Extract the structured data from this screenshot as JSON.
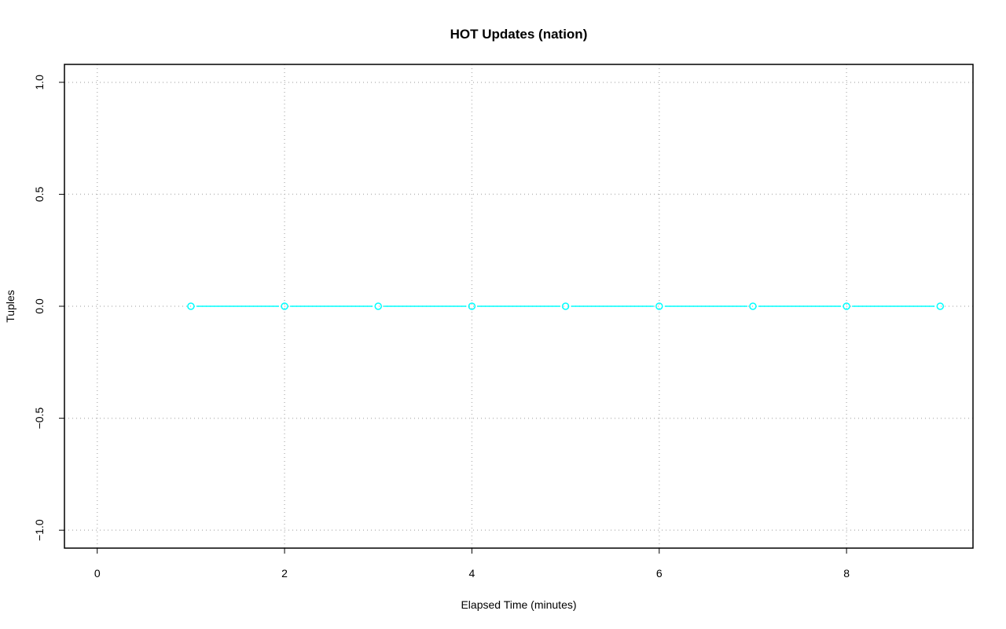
{
  "chart_data": {
    "type": "line",
    "title": "HOT Updates (nation)",
    "xlabel": "Elapsed Time (minutes)",
    "ylabel": "Tuples",
    "xlim": [
      -0.35,
      9.35
    ],
    "ylim": [
      -1.08,
      1.08
    ],
    "xticks": [
      0,
      2,
      4,
      6,
      8
    ],
    "xtick_labels": [
      "0",
      "2",
      "4",
      "6",
      "8"
    ],
    "yticks": [
      -1.0,
      -0.5,
      0.0,
      0.5,
      1.0
    ],
    "ytick_labels": [
      "−1.0",
      "−0.5",
      "0.0",
      "0.5",
      "1.0"
    ],
    "grid": true,
    "series": [
      {
        "x": [
          1,
          2,
          3,
          4,
          5,
          6,
          7,
          8,
          9
        ],
        "y": [
          0,
          0,
          0,
          0,
          0,
          0,
          0,
          0,
          0
        ],
        "color": "#00ffff",
        "marker": "open-circle"
      }
    ]
  }
}
